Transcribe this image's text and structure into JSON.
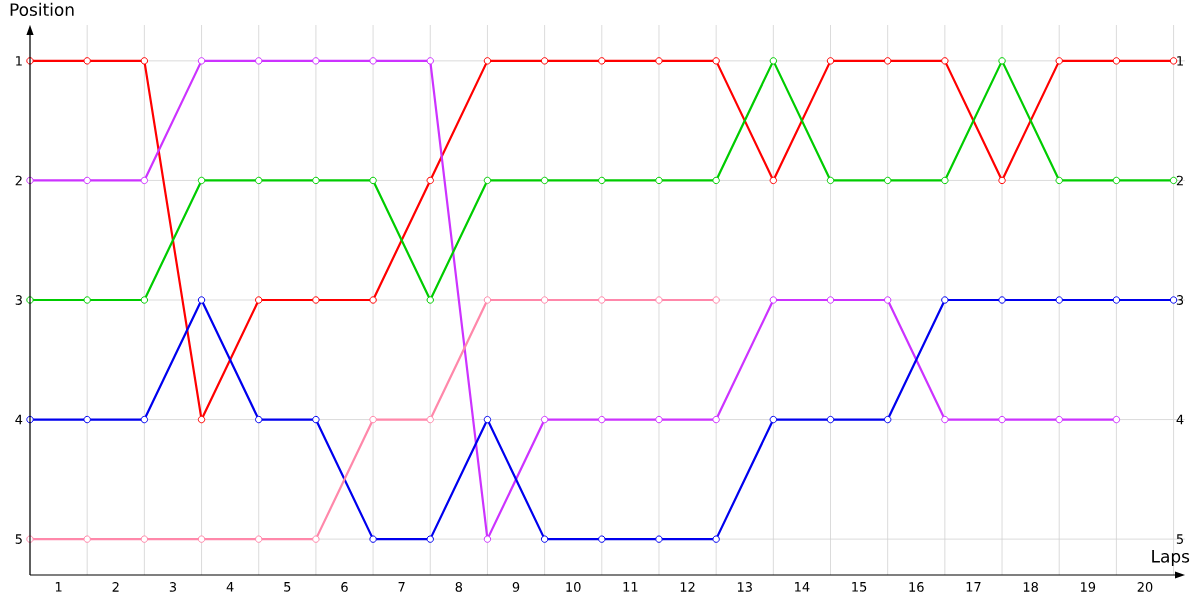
{
  "chart_data": {
    "type": "line",
    "xlabel": "Laps",
    "ylabel": "Position",
    "x": [
      0,
      1,
      2,
      3,
      4,
      5,
      6,
      7,
      8,
      9,
      10,
      11,
      12,
      13,
      14,
      15,
      16,
      17,
      18,
      19,
      20
    ],
    "xlim": [
      0,
      20.2
    ],
    "xticks": [
      {
        "value": 0,
        "label": null
      },
      {
        "value": 0.5,
        "label": "1"
      },
      {
        "value": 1,
        "label": null
      },
      {
        "value": 1.5,
        "label": "2"
      },
      {
        "value": 2,
        "label": null
      },
      {
        "value": 2.5,
        "label": "3"
      },
      {
        "value": 3,
        "label": null
      },
      {
        "value": 3.5,
        "label": "4"
      },
      {
        "value": 4,
        "label": null
      },
      {
        "value": 4.5,
        "label": "5"
      },
      {
        "value": 5,
        "label": null
      },
      {
        "value": 5.5,
        "label": "6"
      },
      {
        "value": 6,
        "label": null
      },
      {
        "value": 6.5,
        "label": "7"
      },
      {
        "value": 7,
        "label": null
      },
      {
        "value": 7.5,
        "label": "8"
      },
      {
        "value": 8,
        "label": null
      },
      {
        "value": 8.5,
        "label": "9"
      },
      {
        "value": 9,
        "label": null
      },
      {
        "value": 9.5,
        "label": "10"
      },
      {
        "value": 10,
        "label": null
      },
      {
        "value": 10.5,
        "label": "11"
      },
      {
        "value": 11,
        "label": null
      },
      {
        "value": 11.5,
        "label": "12"
      },
      {
        "value": 12,
        "label": null
      },
      {
        "value": 12.5,
        "label": "13"
      },
      {
        "value": 13,
        "label": null
      },
      {
        "value": 13.5,
        "label": "14"
      },
      {
        "value": 14,
        "label": null
      },
      {
        "value": 14.5,
        "label": "15"
      },
      {
        "value": 15,
        "label": null
      },
      {
        "value": 15.5,
        "label": "16"
      },
      {
        "value": 16,
        "label": null
      },
      {
        "value": 16.5,
        "label": "17"
      },
      {
        "value": 17,
        "label": null
      },
      {
        "value": 17.5,
        "label": "18"
      },
      {
        "value": 18,
        "label": null
      },
      {
        "value": 18.5,
        "label": "19"
      },
      {
        "value": 19,
        "label": null
      },
      {
        "value": 19.5,
        "label": "20"
      },
      {
        "value": 20,
        "label": null
      }
    ],
    "ylim": [
      5.3,
      0.7
    ],
    "yticks": [
      1,
      2,
      3,
      4,
      5
    ],
    "y2lim": [
      5.3,
      0.7
    ],
    "y2ticks": [
      1,
      2,
      3,
      4,
      5
    ],
    "grid": true,
    "marker": "circle",
    "series": [
      {
        "color": "#ff0000",
        "values": [
          1,
          1,
          1,
          4,
          3,
          3,
          3,
          2,
          1,
          1,
          1,
          1,
          1,
          2,
          1,
          1,
          1,
          2,
          1,
          1,
          1
        ]
      },
      {
        "color": "#cc33ff",
        "values": [
          2,
          2,
          2,
          1,
          1,
          1,
          1,
          1,
          5,
          4,
          4,
          4,
          4,
          3,
          3,
          3,
          4,
          4,
          4,
          4,
          null
        ]
      },
      {
        "color": "#00cc00",
        "values": [
          3,
          3,
          3,
          2,
          2,
          2,
          2,
          3,
          2,
          2,
          2,
          2,
          2,
          1,
          2,
          2,
          2,
          1,
          2,
          2,
          2
        ]
      },
      {
        "color": "#0000ee",
        "values": [
          4,
          4,
          4,
          3,
          4,
          4,
          5,
          5,
          4,
          5,
          5,
          5,
          5,
          4,
          4,
          4,
          3,
          3,
          3,
          3,
          3
        ]
      },
      {
        "color": "#ff88aa",
        "values": [
          5,
          5,
          5,
          5,
          5,
          5,
          4,
          4,
          3,
          3,
          3,
          3,
          3,
          null,
          null,
          null,
          null,
          null,
          null,
          null,
          null
        ]
      }
    ]
  }
}
